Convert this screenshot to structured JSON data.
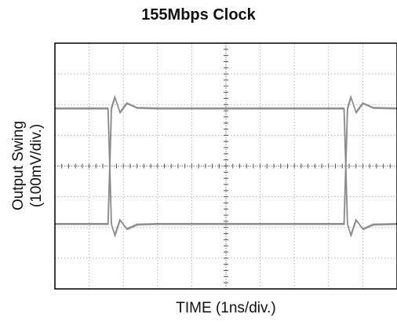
{
  "chart_data": {
    "type": "line",
    "title": "155Mbps Clock",
    "xlabel": "TIME (1ns/div.)",
    "ylabel_line1": "Output Swing",
    "ylabel_line2": "(100mV/div.)",
    "x_divisions": 10,
    "y_divisions": 8,
    "xlim": [
      0,
      10
    ],
    "ylim": [
      -4,
      4
    ],
    "grid": true,
    "grid_style": "dotted",
    "trace_color": "#8a8a8a",
    "grid_color": "#b8b8b8",
    "axis_color": "#000000",
    "series": [
      {
        "x": [
          0,
          1.55,
          1.6,
          1.65,
          1.75,
          1.9,
          2.1,
          2.4,
          3.0,
          8.45,
          8.5,
          8.55,
          8.65,
          8.8,
          9.0,
          9.3,
          10
        ],
        "y": [
          -1.88,
          -1.88,
          0.0,
          1.88,
          2.25,
          1.75,
          2.05,
          1.9,
          1.88,
          1.88,
          0.0,
          -1.88,
          -2.25,
          -1.75,
          -2.05,
          -1.9,
          -1.88
        ]
      },
      {
        "x": [
          0,
          1.55,
          1.6,
          1.65,
          1.75,
          1.9,
          2.1,
          2.4,
          3.0,
          8.45,
          8.5,
          8.55,
          8.65,
          8.8,
          9.0,
          9.3,
          10
        ],
        "y": [
          1.88,
          1.88,
          0.0,
          -1.88,
          -2.25,
          -1.75,
          -2.05,
          -1.9,
          -1.88,
          -1.88,
          0.0,
          1.88,
          2.25,
          1.75,
          2.05,
          1.9,
          1.88
        ]
      }
    ]
  }
}
